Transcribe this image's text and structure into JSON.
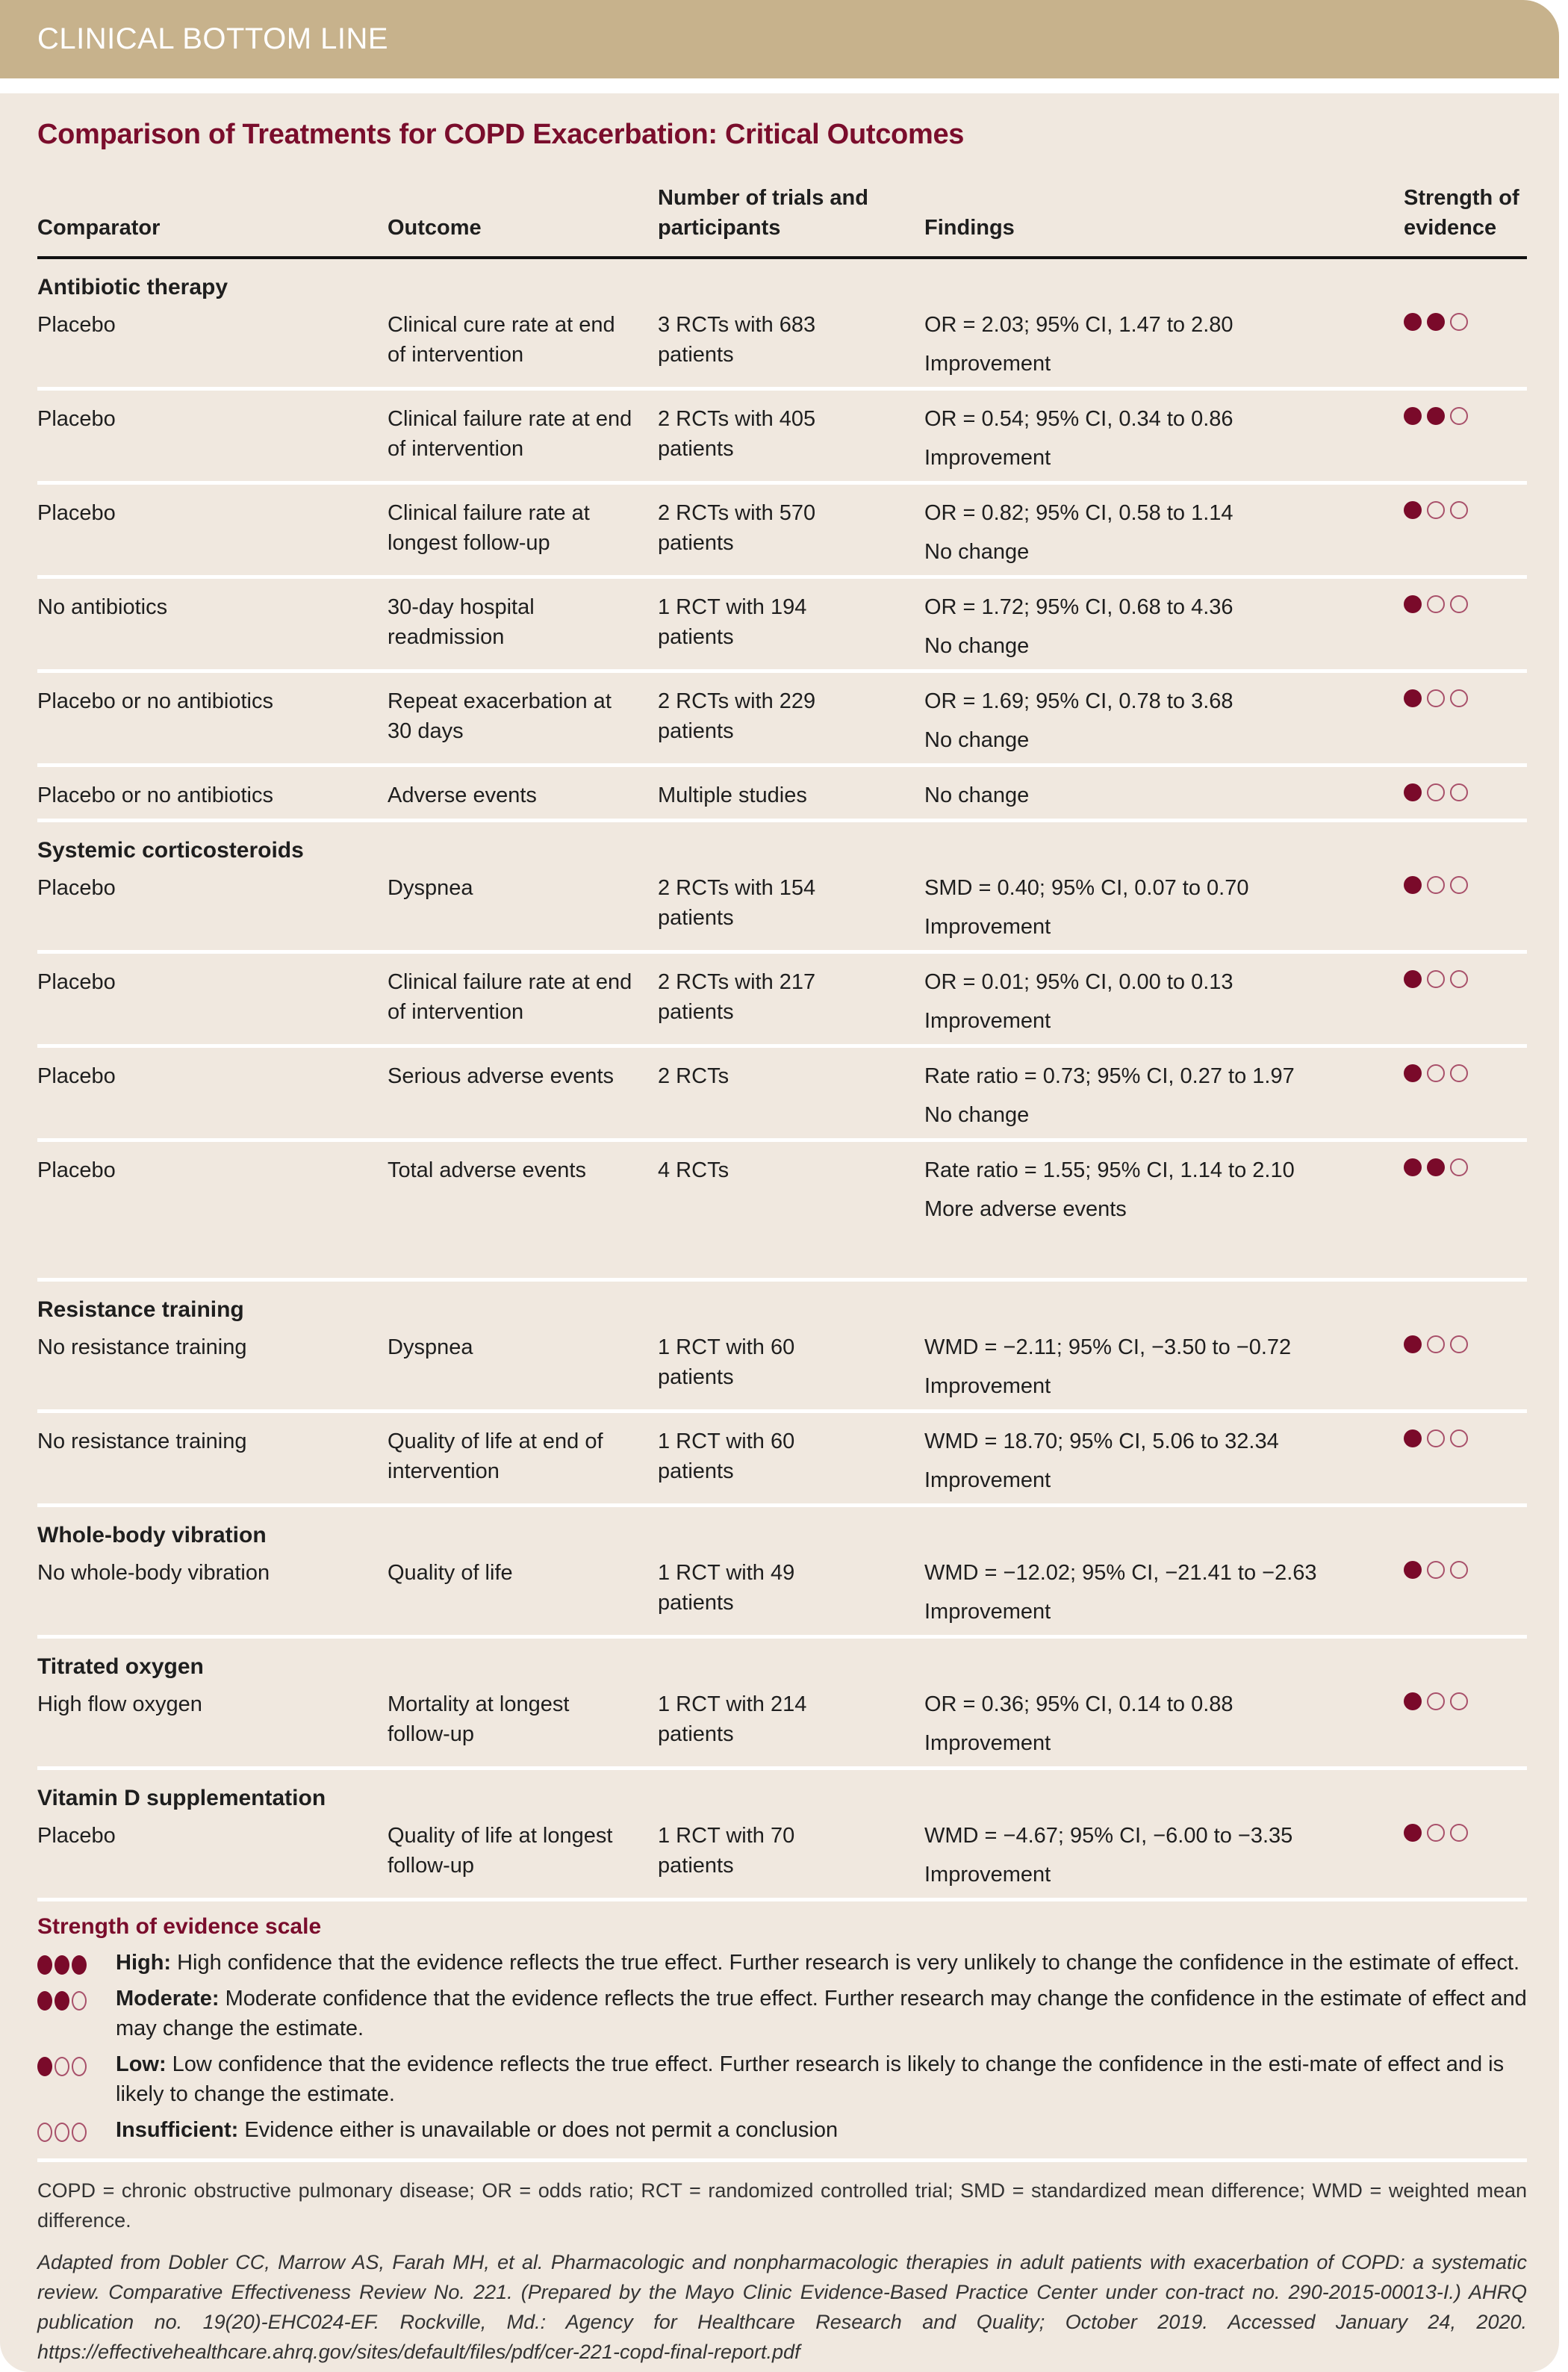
{
  "banner": {
    "title": "CLINICAL BOTTOM LINE"
  },
  "title": "Comparison of Treatments for COPD Exacerbation: Critical Outcomes",
  "columns": [
    "Comparator",
    "Outcome",
    "Number of trials and participants",
    "Findings",
    "Strength of evidence"
  ],
  "colors": {
    "accent": "#7a0d2c",
    "banner": "#c7b28c",
    "panel": "#f0e8df"
  },
  "groups": [
    {
      "name": "Antibiotic therapy",
      "rows": [
        {
          "comparator": "Placebo",
          "outcome": "Clinical cure rate at end of intervention",
          "trials": "3 RCTs with 683 patients",
          "finding": "OR = 2.03; 95% CI, 1.47 to 2.80",
          "effect": "Improvement",
          "strength": 2
        },
        {
          "comparator": "Placebo",
          "outcome": "Clinical failure rate at end of intervention",
          "trials": "2 RCTs with 405 patients",
          "finding": "OR = 0.54; 95% CI, 0.34 to 0.86",
          "effect": "Improvement",
          "strength": 2
        },
        {
          "comparator": "Placebo",
          "outcome": "Clinical failure rate at longest follow-up",
          "trials": "2 RCTs with 570 patients",
          "finding": "OR = 0.82; 95% CI, 0.58 to 1.14",
          "effect": "No change",
          "strength": 1
        },
        {
          "comparator": "No antibiotics",
          "outcome": "30-day hospital readmission",
          "trials": "1 RCT with 194 patients",
          "finding": "OR = 1.72; 95% CI, 0.68 to 4.36",
          "effect": "No change",
          "strength": 1
        },
        {
          "comparator": "Placebo or no antibiotics",
          "outcome": "Repeat exacerbation at 30 days",
          "trials": "2 RCTs with 229 patients",
          "finding": "OR = 1.69; 95% CI, 0.78 to 3.68",
          "effect": "No change",
          "strength": 1
        },
        {
          "comparator": "Placebo or no antibiotics",
          "outcome": "Adverse events",
          "trials": "Multiple studies",
          "finding": "No change",
          "effect": "",
          "strength": 1
        }
      ]
    },
    {
      "name": "Systemic corticosteroids",
      "rows": [
        {
          "comparator": "Placebo",
          "outcome": "Dyspnea",
          "trials": "2 RCTs with 154 patients",
          "finding": "SMD = 0.40; 95% CI, 0.07 to 0.70",
          "effect": "Improvement",
          "strength": 1
        },
        {
          "comparator": "Placebo",
          "outcome": "Clinical failure rate at end of intervention",
          "trials": "2 RCTs with 217 patients",
          "finding": "OR = 0.01; 95% CI, 0.00 to 0.13",
          "effect": "Improvement",
          "strength": 1
        },
        {
          "comparator": "Placebo",
          "outcome": "Serious adverse events",
          "trials": "2 RCTs",
          "finding": "Rate ratio = 0.73; 95% CI, 0.27 to 1.97",
          "effect": "No change",
          "strength": 1
        },
        {
          "comparator": "Placebo",
          "outcome": "Total adverse events",
          "trials": "4 RCTs",
          "finding": "Rate ratio = 1.55; 95% CI, 1.14 to 2.10",
          "effect": "More adverse events",
          "strength": 2
        }
      ]
    },
    {
      "name": "Resistance training",
      "rows": [
        {
          "comparator": "No resistance training",
          "outcome": "Dyspnea",
          "trials": "1 RCT with 60 patients",
          "finding": "WMD = −2.11; 95% CI, −3.50 to −0.72",
          "effect": "Improvement",
          "strength": 1
        },
        {
          "comparator": "No resistance training",
          "outcome": "Quality of life at end of intervention",
          "trials": "1 RCT with 60 patients",
          "finding": "WMD = 18.70; 95% CI, 5.06 to 32.34",
          "effect": "Improvement",
          "strength": 1
        }
      ]
    },
    {
      "name": "Whole-body vibration",
      "rows": [
        {
          "comparator": "No whole-body vibration",
          "outcome": "Quality of life",
          "trials": "1 RCT with 49 patients",
          "finding": "WMD = −12.02; 95% CI, −21.41 to −2.63",
          "effect": "Improvement",
          "strength": 1
        }
      ]
    },
    {
      "name": "Titrated oxygen",
      "rows": [
        {
          "comparator": "High flow oxygen",
          "outcome": "Mortality at longest follow-up",
          "trials": "1 RCT with 214 patients",
          "finding": "OR = 0.36; 95% CI, 0.14 to 0.88",
          "effect": "Improvement",
          "strength": 1
        }
      ]
    },
    {
      "name": "Vitamin D supplementation",
      "rows": [
        {
          "comparator": "Placebo",
          "outcome": "Quality of life at longest follow-up",
          "trials": "1 RCT with 70 patients",
          "finding": "WMD = −4.67; 95% CI, −6.00 to −3.35",
          "effect": "Improvement",
          "strength": 1
        }
      ]
    }
  ],
  "scale": {
    "title": "Strength of evidence scale",
    "levels": [
      {
        "label": "High:",
        "text": "High confidence that the evidence reflects the true effect. Further research is very unlikely to change the confidence in the estimate of effect.",
        "filled": 3
      },
      {
        "label": "Moderate:",
        "text": "Moderate confidence that the evidence reflects the true effect. Further research may change the confidence in the estimate of effect and may change the estimate.",
        "filled": 2
      },
      {
        "label": "Low:",
        "text": "Low confidence that the evidence reflects the true effect. Further research is likely to change the confidence in the esti-mate of effect and is likely to change the estimate.",
        "filled": 1
      },
      {
        "label": "Insufficient:",
        "text": "Evidence either is unavailable or does not permit a conclusion",
        "filled": 0
      }
    ]
  },
  "footnote": "COPD = chronic obstructive pulmonary disease; OR = odds ratio; RCT = randomized controlled trial; SMD = standardized mean difference; WMD = weighted mean difference.",
  "citation": "Adapted from Dobler CC, Marrow AS, Farah MH, et al. Pharmacologic and nonpharmacologic therapies in adult patients with exacerbation of COPD: a systematic review. Comparative Effectiveness Review No. 221. (Prepared by the Mayo Clinic Evidence-Based Practice Center under con-tract no. 290-2015-00013-I.) AHRQ publication no. 19(20)-EHC024-EF. Rockville, Md.: Agency for Healthcare Research and Quality; October 2019. Accessed January 24, 2020. https://effectivehealthcare.ahrq.gov/sites/default/files/pdf/cer-221-copd-final-report.pdf"
}
